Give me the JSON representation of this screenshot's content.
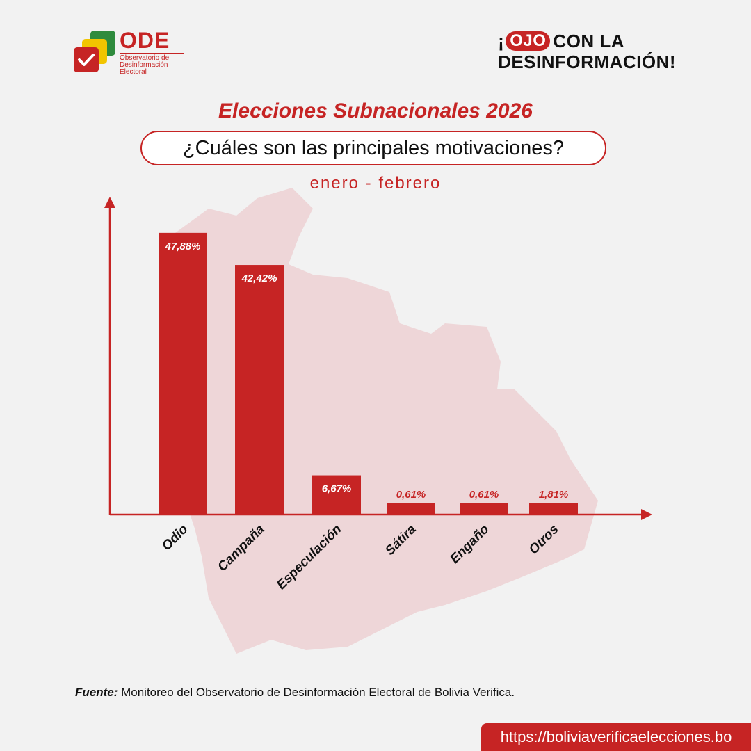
{
  "logo": {
    "name": "ODE",
    "subtitle": "Observatorio de Desinformación Electoral"
  },
  "badge": {
    "prefix": "¡",
    "highlight": "OJO",
    "line1_rest": "CON LA",
    "line2": "DESINFORMACIÓN!"
  },
  "title": "Elecciones Subnacionales 2026",
  "subtitle": "¿Cuáles son las principales motivaciones?",
  "period": "enero - febrero",
  "colors": {
    "accent": "#c62424",
    "map": "#eed6d8",
    "background": "#f2f2f2"
  },
  "chart_data": {
    "type": "bar",
    "categories": [
      "Odio",
      "Campaña",
      "Especulación",
      "Sátira",
      "Engaño",
      "Otros"
    ],
    "values": [
      47.88,
      42.42,
      6.67,
      0.61,
      0.61,
      1.81
    ],
    "value_labels": [
      "47,88%",
      "42,42%",
      "6,67%",
      "0,61%",
      "0,61%",
      "1,81%"
    ],
    "ylim": [
      0,
      52
    ],
    "grid": false,
    "legend": "none",
    "xlabel": "",
    "ylabel": ""
  },
  "source": {
    "label": "Fuente:",
    "text": " Monitoreo del Observatorio de Desinformación Electoral de Bolivia Verifica."
  },
  "url": "https://boliviaverificaelecciones.bo"
}
